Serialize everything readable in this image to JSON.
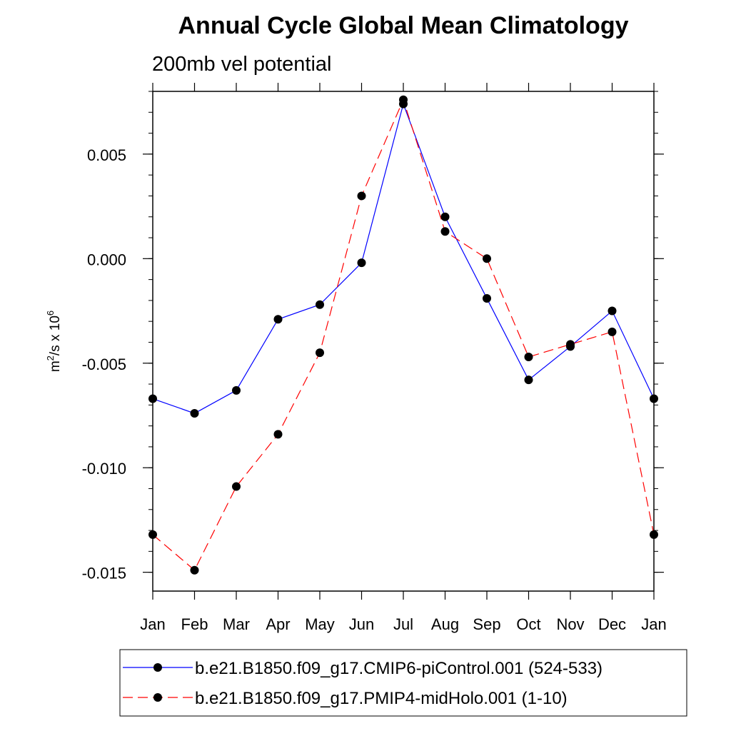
{
  "chart_data": {
    "type": "line",
    "title": "Annual Cycle Global Mean Climatology",
    "subtitle": "200mb vel potential",
    "ylabel": {
      "base": "m",
      "sup1": "2",
      "mid": "/s x 10",
      "sup2": "6"
    },
    "xlabel": "",
    "categories": [
      "Jan",
      "Feb",
      "Mar",
      "Apr",
      "May",
      "Jun",
      "Jul",
      "Aug",
      "Sep",
      "Oct",
      "Nov",
      "Dec",
      "Jan"
    ],
    "ylim": [
      -0.0159,
      0.008
    ],
    "yticks": [
      {
        "value": 0.005,
        "label": "0.005"
      },
      {
        "value": 0.0,
        "label": "0.000"
      },
      {
        "value": -0.005,
        "label": "-0.005"
      },
      {
        "value": -0.01,
        "label": "-0.010"
      },
      {
        "value": -0.015,
        "label": "-0.015"
      }
    ],
    "yminor_step": 0.001,
    "series": [
      {
        "name": "b.e21.B1850.f09_g17.CMIP6-piControl.001 (524-533)",
        "color": "#0000ff",
        "dash": "solid",
        "values": [
          -0.0067,
          -0.0074,
          -0.0063,
          -0.0029,
          -0.0022,
          -0.0002,
          0.0074,
          0.002,
          -0.0019,
          -0.0058,
          -0.0042,
          -0.0025,
          -0.0067
        ]
      },
      {
        "name": "b.e21.B1850.f09_g17.PMIP4-midHolo.001 (1-10)",
        "color": "#ff0000",
        "dash": "dashed",
        "values": [
          -0.0132,
          -0.0149,
          -0.0109,
          -0.0084,
          -0.0045,
          0.003,
          0.0076,
          0.0013,
          0.0,
          -0.0047,
          -0.0041,
          -0.0035,
          -0.0132
        ]
      }
    ],
    "legend_position": "bottom"
  }
}
